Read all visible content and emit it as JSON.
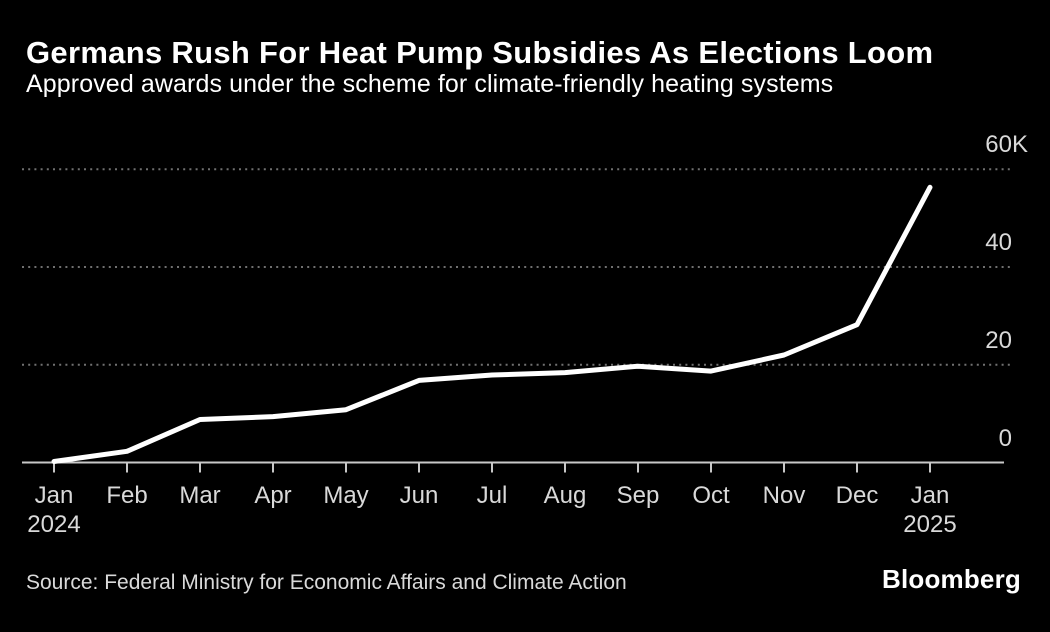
{
  "header": {
    "title": "Germans Rush For Heat Pump Subsidies As Elections Loom",
    "subtitle": "Approved awards under the scheme for climate-friendly heating systems"
  },
  "footer": {
    "source": "Source: Federal Ministry for Economic Affairs and Climate Action",
    "brand": "Bloomberg"
  },
  "colors": {
    "background": "#000000",
    "data_line": "#ffffff",
    "gridline": "#707070",
    "axis_line": "#c8c8c8",
    "tick_mark": "#c8c8c8",
    "axis_label": "#d9d9d9",
    "title_text": "#ffffff"
  },
  "chart_data": {
    "type": "line",
    "title": "Germans Rush For Heat Pump Subsidies As Elections Loom",
    "subtitle": "Approved awards under the scheme for climate-friendly heating systems",
    "xlabel": "",
    "ylabel": "",
    "unit": "thousands of approved awards",
    "categories": [
      "Jan 2024",
      "Feb",
      "Mar",
      "Apr",
      "May",
      "Jun",
      "Jul",
      "Aug",
      "Sep",
      "Oct",
      "Nov",
      "Dec",
      "Jan 2025"
    ],
    "x_ticks": [
      {
        "month": "Jan",
        "year": "2024"
      },
      {
        "month": "Feb"
      },
      {
        "month": "Mar"
      },
      {
        "month": "Apr"
      },
      {
        "month": "May"
      },
      {
        "month": "Jun"
      },
      {
        "month": "Jul"
      },
      {
        "month": "Aug"
      },
      {
        "month": "Sep"
      },
      {
        "month": "Oct"
      },
      {
        "month": "Nov"
      },
      {
        "month": "Dec"
      },
      {
        "month": "Jan",
        "year": "2025"
      }
    ],
    "values_thousands": [
      0.2,
      2.3,
      8.8,
      9.4,
      10.8,
      16.8,
      17.9,
      18.4,
      19.7,
      18.7,
      22.0,
      28.2,
      56.3
    ],
    "ylim": [
      0,
      60
    ],
    "y_ticks": [
      {
        "value": 0,
        "label": "0"
      },
      {
        "value": 20,
        "label": "20"
      },
      {
        "value": 40,
        "label": "40"
      },
      {
        "value": 60,
        "label": "60K"
      }
    ],
    "y_axis_side": "right",
    "grid": "horizontal dotted",
    "legend_position": "none",
    "series_name": "Approved awards"
  }
}
